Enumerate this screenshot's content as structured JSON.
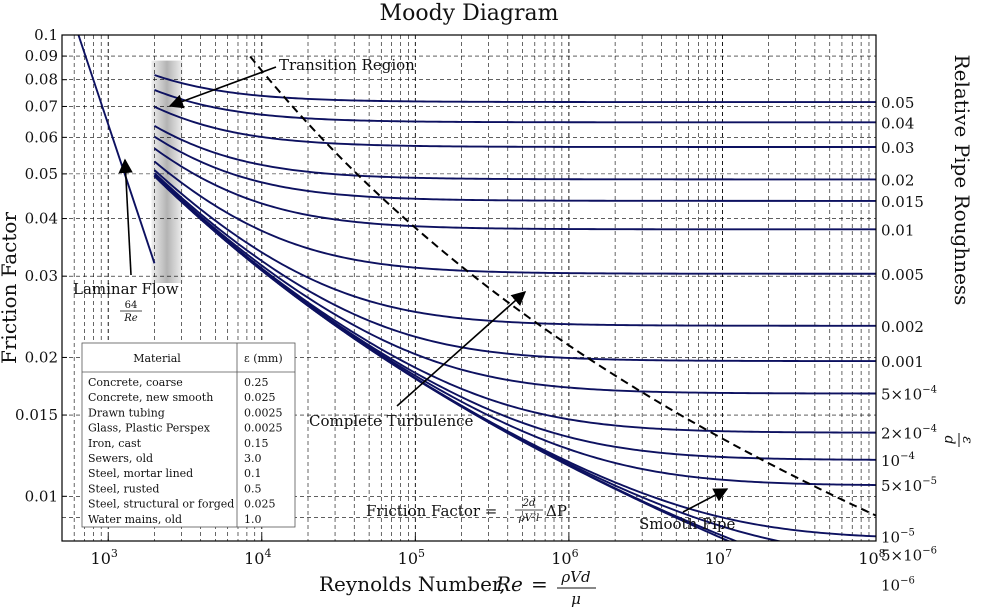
{
  "chart_data": {
    "type": "line",
    "title": "Moody Diagram",
    "xlabel": "Reynolds Number, Re = ρVd/μ",
    "xlabel_parts": {
      "text": "Reynolds Number,",
      "re": "Re",
      "eq": "=",
      "num": "ρVd",
      "den": "μ"
    },
    "ylabel": "Friction Factor",
    "right_label": "Relative Pipe Roughness ε/d",
    "right_label_parts": {
      "text": "Relative Pipe Roughness",
      "num": "ε",
      "den": "d"
    },
    "xscale": "log",
    "yscale": "log",
    "xlim": [
      500,
      100000000
    ],
    "ylim": [
      0.008,
      0.1
    ],
    "grid": "dashed",
    "x_ticks": [
      {
        "value": 1000,
        "base": "10",
        "exp": "3"
      },
      {
        "value": 10000,
        "base": "10",
        "exp": "4"
      },
      {
        "value": 100000,
        "base": "10",
        "exp": "5"
      },
      {
        "value": 1000000,
        "base": "10",
        "exp": "6"
      },
      {
        "value": 10000000,
        "base": "10",
        "exp": "7"
      },
      {
        "value": 100000000,
        "base": "10",
        "exp": "8"
      }
    ],
    "y_ticks": [
      {
        "value": 0.1,
        "label": "0.1"
      },
      {
        "value": 0.09,
        "label": "0.09"
      },
      {
        "value": 0.08,
        "label": "0.08"
      },
      {
        "value": 0.07,
        "label": "0.07"
      },
      {
        "value": 0.06,
        "label": "0.06"
      },
      {
        "value": 0.05,
        "label": "0.05"
      },
      {
        "value": 0.04,
        "label": "0.04"
      },
      {
        "value": 0.03,
        "label": "0.03"
      },
      {
        "value": 0.02,
        "label": "0.02"
      },
      {
        "value": 0.015,
        "label": "0.015"
      },
      {
        "value": 0.01,
        "label": "0.01"
      }
    ],
    "roughness_series": [
      {
        "value": 0.05,
        "label": "0.05"
      },
      {
        "value": 0.04,
        "label": "0.04"
      },
      {
        "value": 0.03,
        "label": "0.03"
      },
      {
        "value": 0.02,
        "label": "0.02"
      },
      {
        "value": 0.015,
        "label": "0.015"
      },
      {
        "value": 0.01,
        "label": "0.01"
      },
      {
        "value": 0.005,
        "label": "0.005"
      },
      {
        "value": 0.002,
        "label": "0.002"
      },
      {
        "value": 0.001,
        "label": "0.001"
      },
      {
        "value": 0.0005,
        "label": "5×10",
        "exp": "−4"
      },
      {
        "value": 0.0002,
        "label": "2×10",
        "exp": "−4"
      },
      {
        "value": 0.0001,
        "label": "10",
        "exp": "−4"
      },
      {
        "value": 5e-05,
        "label": "5×10",
        "exp": "−5"
      },
      {
        "value": 1e-05,
        "label": "10",
        "exp": "−5"
      },
      {
        "value": 5e-06,
        "label": "5×10",
        "exp": "−6"
      },
      {
        "value": 1e-06,
        "label": "10",
        "exp": "−6"
      },
      {
        "value": 0,
        "label": ""
      }
    ],
    "laminar": {
      "formula": "f = 64/Re",
      "re_range": [
        640,
        2000
      ]
    },
    "transition_re_range": [
      2000,
      3000
    ],
    "annotations": {
      "transition": "Transition Region",
      "laminar": "Laminar Flow",
      "laminar_num": "64",
      "laminar_den": "Re",
      "complete_turbulence": "Complete Turbulence",
      "smooth_pipe": "Smooth Pipe",
      "friction_factor_text": "Friction Factor =",
      "ff_num": "2d",
      "ff_den": "ρV²l",
      "ff_tail": "ΔP"
    },
    "material_table": {
      "headers": [
        "Material",
        "ε (mm)"
      ],
      "rows": [
        [
          "Concrete, coarse",
          "0.25"
        ],
        [
          "Concrete, new smooth",
          "0.025"
        ],
        [
          "Drawn tubing",
          "0.0025"
        ],
        [
          "Glass, Plastic Perspex",
          "0.0025"
        ],
        [
          "Iron, cast",
          "0.15"
        ],
        [
          "Sewers, old",
          "3.0"
        ],
        [
          "Steel, mortar lined",
          "0.1"
        ],
        [
          "Steel, rusted",
          "0.5"
        ],
        [
          "Steel, structural or forged",
          "0.025"
        ],
        [
          "Water mains, old",
          "1.0"
        ]
      ]
    },
    "colors": {
      "curve": "#0d1160",
      "grid": "#000000",
      "transition_band": "#9a9a9a"
    }
  }
}
